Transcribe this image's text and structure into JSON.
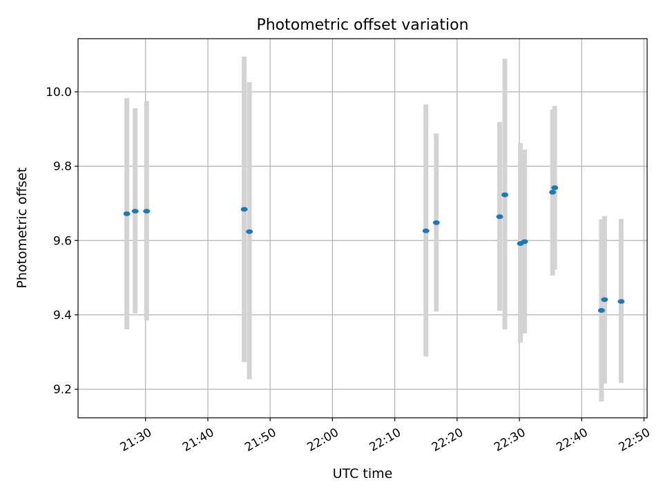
{
  "chart_data": {
    "type": "scatter",
    "title": "Photometric offset variation",
    "xlabel": "UTC time",
    "ylabel": "Photometric offset",
    "x_axis_kind": "time",
    "xlim": [
      "21:19:10",
      "22:50:30"
    ],
    "ylim": [
      9.123,
      10.143
    ],
    "x_ticks": [
      "21:30",
      "21:40",
      "21:50",
      "22:00",
      "22:10",
      "22:20",
      "22:30",
      "22:40",
      "22:50"
    ],
    "y_ticks": [
      9.2,
      9.4,
      9.6,
      9.8,
      10.0
    ],
    "y_tick_labels": [
      "9.2",
      "9.4",
      "9.6",
      "9.8",
      "10.0"
    ],
    "grid": true,
    "colors": {
      "marker": "#1f77b4",
      "errorbar": "#d3d3d3",
      "grid": "#b0b0b0",
      "axes": "#000000"
    },
    "points": [
      {
        "x": "21:27:00",
        "y": 9.672,
        "y_low": 9.361,
        "y_high": 9.983
      },
      {
        "x": "21:28:20",
        "y": 9.679,
        "y_low": 9.404,
        "y_high": 9.956
      },
      {
        "x": "21:30:10",
        "y": 9.679,
        "y_low": 9.385,
        "y_high": 9.975
      },
      {
        "x": "21:45:50",
        "y": 9.684,
        "y_low": 9.273,
        "y_high": 10.095
      },
      {
        "x": "21:46:40",
        "y": 9.624,
        "y_low": 9.227,
        "y_high": 10.026
      },
      {
        "x": "22:15:00",
        "y": 9.626,
        "y_low": 9.288,
        "y_high": 9.966
      },
      {
        "x": "22:16:40",
        "y": 9.648,
        "y_low": 9.409,
        "y_high": 9.888
      },
      {
        "x": "22:26:50",
        "y": 9.664,
        "y_low": 9.411,
        "y_high": 9.919
      },
      {
        "x": "22:27:40",
        "y": 9.723,
        "y_low": 9.361,
        "y_high": 10.089
      },
      {
        "x": "22:30:10",
        "y": 9.592,
        "y_low": 9.325,
        "y_high": 9.862
      },
      {
        "x": "22:30:50",
        "y": 9.597,
        "y_low": 9.35,
        "y_high": 9.845
      },
      {
        "x": "22:35:20",
        "y": 9.73,
        "y_low": 9.506,
        "y_high": 9.952
      },
      {
        "x": "22:35:40",
        "y": 9.742,
        "y_low": 9.522,
        "y_high": 9.962
      },
      {
        "x": "22:43:10",
        "y": 9.412,
        "y_low": 9.167,
        "y_high": 9.657
      },
      {
        "x": "22:43:40",
        "y": 9.441,
        "y_low": 9.215,
        "y_high": 9.666
      },
      {
        "x": "22:46:20",
        "y": 9.436,
        "y_low": 9.217,
        "y_high": 9.658
      }
    ]
  }
}
